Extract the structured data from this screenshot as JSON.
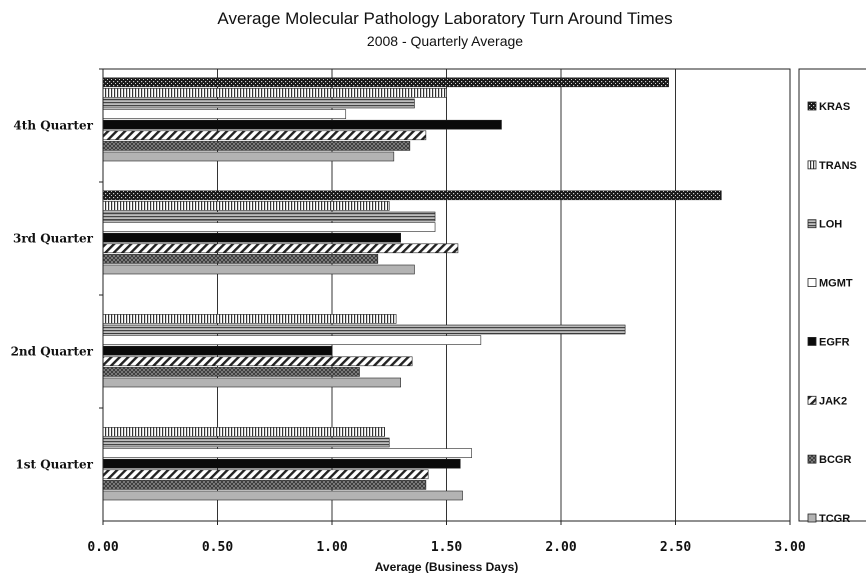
{
  "chart_data": {
    "type": "bar",
    "orientation": "horizontal",
    "title": "Average Molecular Pathology Laboratory Turn Around Times",
    "subtitle": "2008 - Quarterly Average",
    "xlabel": "Average (Business Days)",
    "ylabel": "",
    "xlim": [
      0,
      3
    ],
    "xticks": [
      "0.00",
      "0.50",
      "1.00",
      "1.50",
      "2.00",
      "2.50",
      "3.00"
    ],
    "grid": "vertical",
    "legend_position": "right",
    "categories": [
      "1st Quarter",
      "2nd Quarter",
      "3rd Quarter",
      "4th Quarter"
    ],
    "series": [
      {
        "name": "KRAS",
        "pattern": "dots",
        "values": [
          null,
          null,
          2.7,
          2.47
        ]
      },
      {
        "name": "TRANS",
        "pattern": "vertical",
        "values": [
          1.23,
          1.28,
          1.25,
          1.5
        ]
      },
      {
        "name": "LOH",
        "pattern": "horizontal",
        "values": [
          1.25,
          2.28,
          1.45,
          1.36
        ]
      },
      {
        "name": "MGMT",
        "pattern": "white",
        "values": [
          1.61,
          1.65,
          1.45,
          1.06
        ]
      },
      {
        "name": "EGFR",
        "pattern": "black",
        "values": [
          1.56,
          1.0,
          1.3,
          1.74
        ]
      },
      {
        "name": "JAK2",
        "pattern": "diagonal",
        "values": [
          1.42,
          1.35,
          1.55,
          1.41
        ]
      },
      {
        "name": "BCGR",
        "pattern": "crosshatch",
        "values": [
          1.41,
          1.12,
          1.2,
          1.34
        ]
      },
      {
        "name": "TCGR",
        "pattern": "gray",
        "values": [
          1.57,
          1.3,
          1.36,
          1.27
        ]
      }
    ]
  }
}
